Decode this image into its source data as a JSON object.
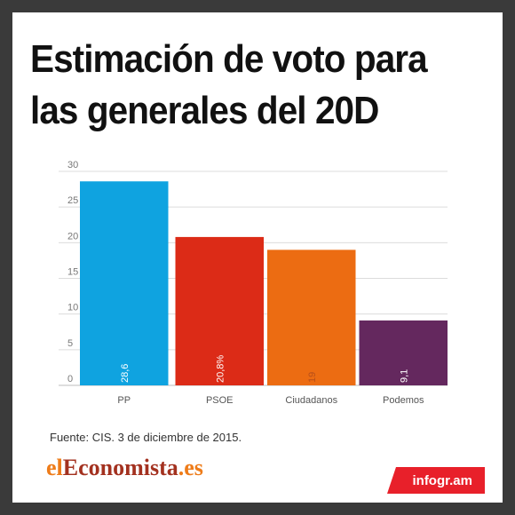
{
  "title": "Estimación de voto para las generales del 20D",
  "source": "Fuente:  CIS.  3 de diciembre de 2015.",
  "logo": {
    "prefix": "el",
    "main": "Economista",
    "suffix": ".es"
  },
  "badge": "infogr.am",
  "chart_data": {
    "type": "bar",
    "title": "Estimación de voto para las generales del 20D",
    "xlabel": "",
    "ylabel": "",
    "ylim": [
      0,
      30
    ],
    "yticks": [
      0,
      5,
      10,
      15,
      20,
      25,
      30
    ],
    "categories": [
      "PP",
      "PSOE",
      "Ciudadanos",
      "Podemos"
    ],
    "values": [
      28.6,
      20.8,
      19,
      9.1
    ],
    "value_labels": [
      "28,6",
      "20,8%",
      "19",
      "9,1"
    ],
    "colors": [
      "#0fa3e0",
      "#dc2b17",
      "#ec6c12",
      "#64285e"
    ],
    "label_colors": [
      "#ffffff",
      "#ffffff",
      "#b8501a",
      "#ffffff"
    ],
    "grid": true
  }
}
